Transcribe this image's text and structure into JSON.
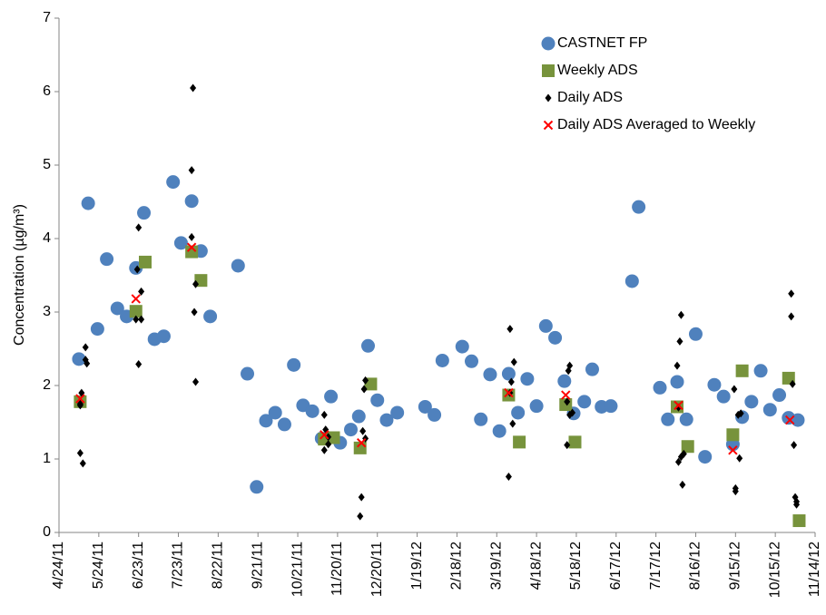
{
  "chart_data": {
    "type": "scatter",
    "y_label": "Concentration (µg/m³)",
    "xlim": [
      0,
      570
    ],
    "ylim": [
      0,
      7
    ],
    "yticks": [
      0,
      1,
      2,
      3,
      4,
      5,
      6,
      7
    ],
    "xticks": [
      {
        "value": 0,
        "label": "4/24/11"
      },
      {
        "value": 30,
        "label": "5/24/11"
      },
      {
        "value": 60,
        "label": "6/23/11"
      },
      {
        "value": 90,
        "label": "7/23/11"
      },
      {
        "value": 120,
        "label": "8/22/11"
      },
      {
        "value": 150,
        "label": "9/21/11"
      },
      {
        "value": 180,
        "label": "10/21/11"
      },
      {
        "value": 210,
        "label": "11/20/11"
      },
      {
        "value": 240,
        "label": "12/20/11"
      },
      {
        "value": 270,
        "label": "1/19/12"
      },
      {
        "value": 300,
        "label": "2/18/12"
      },
      {
        "value": 330,
        "label": "3/19/12"
      },
      {
        "value": 360,
        "label": "4/18/12"
      },
      {
        "value": 390,
        "label": "5/18/12"
      },
      {
        "value": 420,
        "label": "6/17/12"
      },
      {
        "value": 450,
        "label": "7/17/12"
      },
      {
        "value": 480,
        "label": "8/16/12"
      },
      {
        "value": 510,
        "label": "9/15/12"
      },
      {
        "value": 540,
        "label": "10/15/12"
      },
      {
        "value": 570,
        "label": "11/14/12"
      }
    ],
    "grid": false,
    "legend": "upper right",
    "series": [
      {
        "name": "CASTNET FP",
        "color": "#4f81bd",
        "marker": "circle",
        "x": [
          15,
          22,
          29,
          36,
          44,
          51,
          58,
          64,
          72,
          79,
          86,
          92,
          100,
          107,
          114,
          135,
          142,
          149,
          156,
          163,
          170,
          177,
          184,
          191,
          198,
          205,
          212,
          220,
          226,
          233,
          240,
          247,
          255,
          276,
          283,
          289,
          304,
          311,
          318,
          325,
          332,
          339,
          346,
          353,
          360,
          367,
          374,
          381,
          388,
          396,
          402,
          409,
          416,
          432,
          437,
          453,
          459,
          466,
          473,
          480,
          487,
          494,
          501,
          508,
          515,
          522,
          529,
          536,
          543,
          550,
          557
        ],
        "values": [
          2.36,
          4.48,
          2.77,
          3.72,
          3.05,
          2.94,
          3.6,
          4.35,
          2.63,
          2.67,
          4.77,
          3.94,
          4.51,
          3.83,
          2.94,
          3.63,
          2.16,
          0.62,
          1.52,
          1.63,
          1.47,
          2.28,
          1.73,
          1.65,
          1.28,
          1.85,
          1.22,
          1.4,
          1.58,
          2.54,
          1.8,
          1.53,
          1.63,
          1.71,
          1.6,
          2.34,
          2.53,
          2.33,
          1.54,
          2.15,
          1.38,
          2.16,
          1.63,
          2.09,
          1.72,
          2.81,
          2.65,
          2.06,
          1.62,
          1.78,
          2.22,
          1.71,
          1.72,
          3.42,
          4.43,
          1.97,
          1.54,
          2.05,
          1.54,
          2.7,
          1.03,
          2.01,
          1.85,
          1.2,
          1.57,
          1.78,
          2.2,
          1.67,
          1.87,
          1.56,
          1.53
        ]
      },
      {
        "name": "Weekly ADS",
        "color": "#77933c",
        "marker": "square",
        "x": [
          16,
          58,
          65,
          100,
          107,
          200,
          207,
          227,
          235,
          339,
          347,
          382,
          389,
          466,
          474,
          508,
          515,
          550,
          558
        ],
        "values": [
          1.78,
          3.01,
          3.68,
          3.82,
          3.43,
          1.27,
          1.29,
          1.15,
          2.02,
          1.87,
          1.23,
          1.74,
          1.23,
          1.71,
          1.17,
          1.33,
          2.2,
          2.1,
          0.16
        ]
      },
      {
        "name": "Daily ADS",
        "color": "#000000",
        "marker": "diamond",
        "x": [
          16,
          16,
          16,
          17,
          18,
          20,
          20,
          21,
          58,
          59,
          60,
          60,
          62,
          62,
          100,
          100,
          101,
          102,
          103,
          103,
          200,
          200,
          201,
          203,
          203,
          227,
          228,
          229,
          230,
          231,
          231,
          339,
          340,
          340,
          341,
          342,
          343,
          383,
          383,
          384,
          385,
          385,
          387,
          466,
          467,
          467,
          468,
          469,
          469,
          470,
          471,
          509,
          510,
          510,
          512,
          513,
          514,
          552,
          552,
          553,
          554,
          555,
          556,
          556
        ],
        "values": [
          1.75,
          1.73,
          1.08,
          1.9,
          0.94,
          2.52,
          2.35,
          2.3,
          2.9,
          3.58,
          4.15,
          2.29,
          2.9,
          3.28,
          4.93,
          4.02,
          6.05,
          3.0,
          3.38,
          2.05,
          1.12,
          1.6,
          1.4,
          1.2,
          1.3,
          0.22,
          0.48,
          1.38,
          1.95,
          2.07,
          1.28,
          0.76,
          2.77,
          1.9,
          2.05,
          1.48,
          2.32,
          1.19,
          1.78,
          2.2,
          2.27,
          1.6,
          1.63,
          2.27,
          0.96,
          1.7,
          2.6,
          2.96,
          1.03,
          0.65,
          1.07,
          1.95,
          0.56,
          0.6,
          1.6,
          1.01,
          1.62,
          2.94,
          3.25,
          2.02,
          1.19,
          0.48,
          0.38,
          0.42
        ]
      },
      {
        "name": "Daily ADS Averaged to Weekly",
        "color": "#ff0000",
        "marker": "x",
        "x": [
          16,
          58,
          100,
          200,
          228,
          339,
          382,
          467,
          508,
          551
        ],
        "values": [
          1.82,
          3.18,
          3.88,
          1.33,
          1.22,
          1.9,
          1.87,
          1.73,
          1.12,
          1.53
        ]
      }
    ]
  }
}
